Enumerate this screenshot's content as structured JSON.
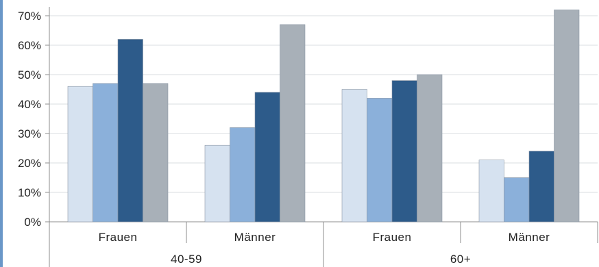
{
  "chart_data": {
    "type": "bar",
    "title": "",
    "xlabel": "",
    "ylabel": "",
    "ylim": [
      0,
      70
    ],
    "y_ticks": [
      "0%",
      "10%",
      "20%",
      "30%",
      "40%",
      "50%",
      "60%",
      "70%"
    ],
    "y_tick_values": [
      0,
      10,
      20,
      30,
      40,
      50,
      60,
      70
    ],
    "grid": true,
    "legend": "none",
    "categories": [
      {
        "sub": "Frauen",
        "group": "40-59"
      },
      {
        "sub": "Männer",
        "group": "40-59"
      },
      {
        "sub": "Frauen",
        "group": "60+"
      },
      {
        "sub": "Männer",
        "group": "60+"
      }
    ],
    "groups": [
      "40-59",
      "60+"
    ],
    "series": [
      {
        "values": [
          46,
          26,
          45,
          21
        ],
        "color": "#d6e2f0"
      },
      {
        "values": [
          47,
          32,
          42,
          15
        ],
        "color": "#8bb0da"
      },
      {
        "values": [
          62,
          44,
          48,
          24
        ],
        "color": "#2d5b8a"
      },
      {
        "values": [
          47,
          67,
          50,
          72
        ],
        "color": "#a8b0b8"
      }
    ],
    "colors": {
      "left_edge": "#6a97c8",
      "grid": "#d8dde2",
      "axis": "#8c8c8c",
      "bar_outline": "#8a96a4"
    }
  }
}
